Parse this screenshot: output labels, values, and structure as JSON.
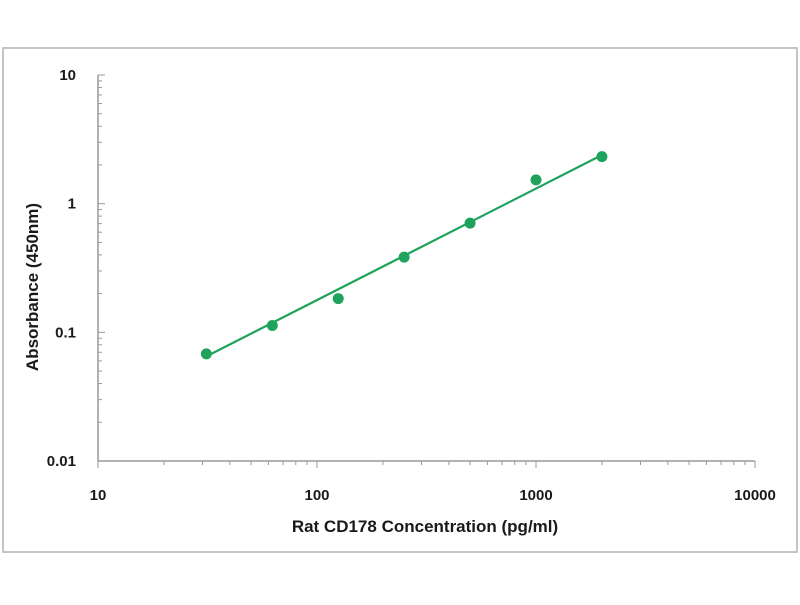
{
  "chart_data": {
    "type": "scatter",
    "xlabel": "Rat CD178 Concentration (pg/ml)",
    "ylabel": "Absorbance (450nm)",
    "x_scale": "log",
    "y_scale": "log",
    "xlim": [
      10,
      10000
    ],
    "ylim": [
      0.01,
      10
    ],
    "x_ticks": [
      10,
      100,
      1000,
      10000
    ],
    "x_tick_labels": [
      "10",
      "100",
      "1000",
      "10000"
    ],
    "y_ticks": [
      0.01,
      0.1,
      1,
      10
    ],
    "y_tick_labels": [
      "0.01",
      "0.1",
      "1",
      "10"
    ],
    "grid": false,
    "points": [
      {
        "x": 31.25,
        "y": 0.068
      },
      {
        "x": 62.5,
        "y": 0.113
      },
      {
        "x": 125,
        "y": 0.183
      },
      {
        "x": 250,
        "y": 0.384
      },
      {
        "x": 500,
        "y": 0.706
      },
      {
        "x": 1000,
        "y": 1.53
      },
      {
        "x": 2000,
        "y": 2.32
      }
    ],
    "fit_line": {
      "x_start": 31.25,
      "y_start": 0.065,
      "x_end": 2000,
      "y_end": 2.39
    },
    "colors": {
      "points": "#1fa35c",
      "fit_line": "#1fa35c",
      "axes": "#9a9a9a",
      "border": "#b0b0b0"
    }
  }
}
